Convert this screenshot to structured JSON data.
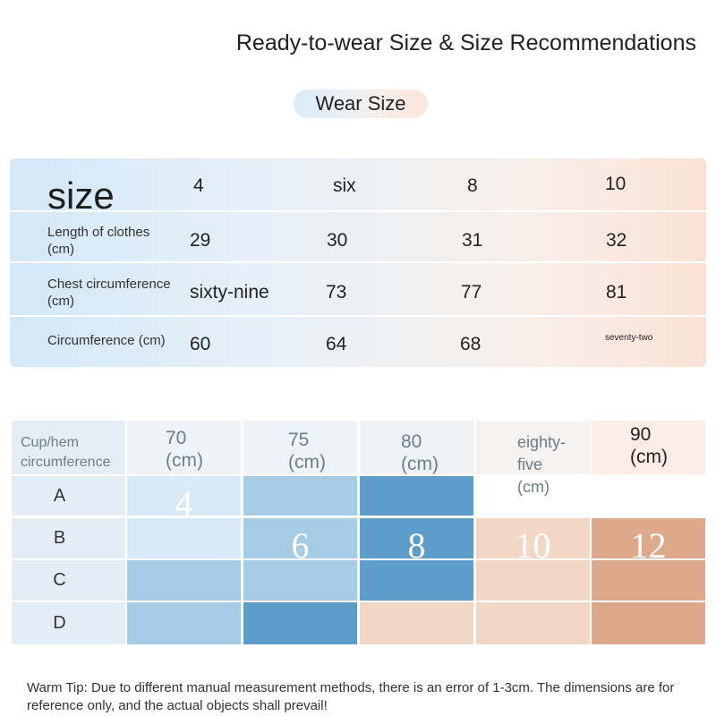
{
  "title": "Ready-to-wear Size & Size Recommendations",
  "pill_label": "Wear Size",
  "wear_table": {
    "header": {
      "label": "size",
      "values": [
        "4",
        "six",
        "8",
        "10"
      ]
    },
    "rows": [
      {
        "label": "Length of clothes (cm)",
        "values": [
          "29",
          "30",
          "31",
          "32"
        ]
      },
      {
        "label": "Chest circumference (cm)",
        "values": [
          "sixty-nine",
          "73",
          "77",
          "81"
        ]
      },
      {
        "label": "Circumference (cm)",
        "values": [
          "60",
          "64",
          "68",
          "seventy-two"
        ]
      }
    ]
  },
  "cup_table": {
    "corner_label": "Cup/hem circumference",
    "columns": [
      {
        "value": "70",
        "unit": "(cm)"
      },
      {
        "value": "75",
        "unit": "(cm)"
      },
      {
        "value": "80",
        "unit": "(cm)"
      },
      {
        "value": "eighty-five",
        "unit": "(cm)"
      },
      {
        "value": "90",
        "unit": "(cm)"
      }
    ],
    "rows": [
      "A",
      "B",
      "C",
      "D"
    ],
    "size_labels": {
      "a70": "4",
      "b75": "6",
      "b80": "8",
      "b85": "10",
      "b90": "12"
    }
  },
  "colors": {
    "blue_light": "#d8eaf7",
    "blue_mid": "#a5cbe5",
    "blue_dark": "#5e9ccb",
    "peach_light": "#f2d6c6",
    "peach_dark": "#dea98a",
    "gray_bg": "#eaf1f7"
  },
  "tip": "Warm Tip: Due to different manual measurement methods, there is an error of 1-3cm. The dimensions are for reference only, and the actual objects shall prevail!"
}
